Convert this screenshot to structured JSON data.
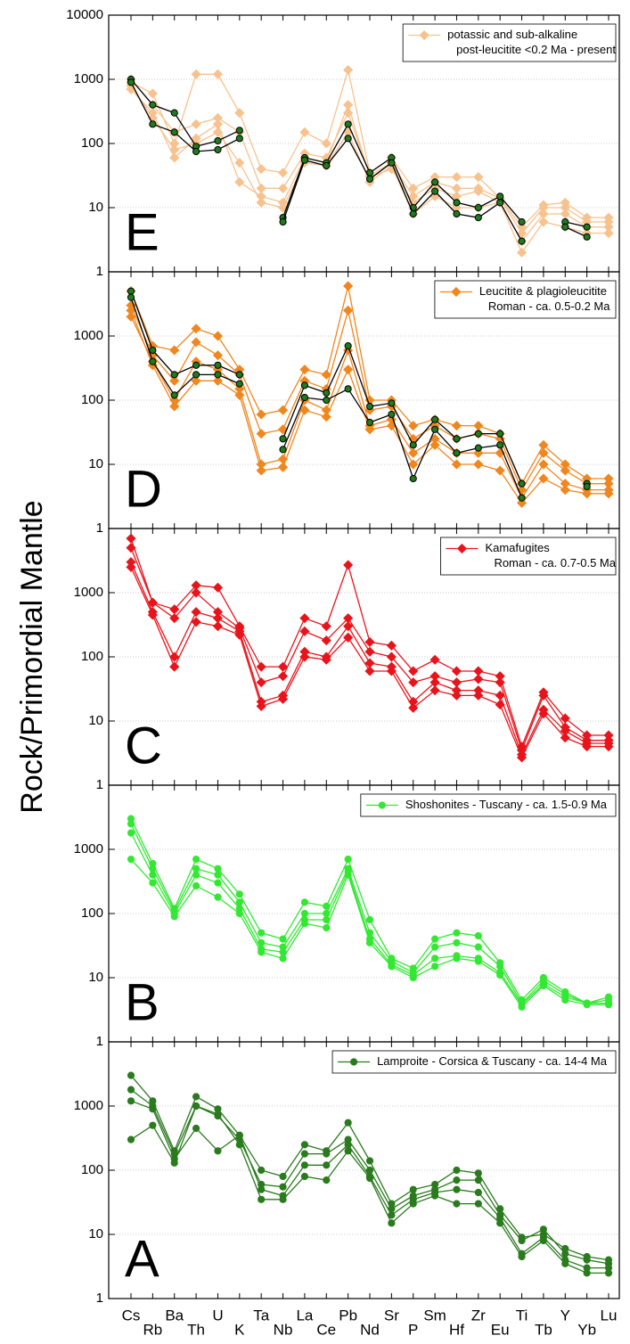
{
  "y_label": "Rock/Primordial Mantle",
  "categories": [
    "Cs",
    "Rb",
    "Ba",
    "Th",
    "U",
    "K",
    "Ta",
    "Nb",
    "La",
    "Ce",
    "Pb",
    "Nd",
    "Sr",
    "P",
    "Sm",
    "Hf",
    "Zr",
    "Eu",
    "Ti",
    "Tb",
    "Y",
    "Yb",
    "Lu"
  ],
  "chart_data": [
    {
      "type": "line",
      "label": "E",
      "log_y": true,
      "ylim": [
        1,
        10000
      ],
      "yticks": [
        1,
        10,
        100,
        1000,
        10000
      ],
      "grid": true,
      "legend": [
        "potassic and sub-alkaline",
        "post-leucitite <0.2 Ma - present"
      ],
      "color": "#f7c28e",
      "marker": "diamond",
      "series": [
        {
          "color": "#f7c28e",
          "values": [
            900,
            600,
            100,
            1200,
            1200,
            300,
            40,
            35,
            150,
            100,
            1400,
            35,
            60,
            20,
            30,
            30,
            30,
            14,
            5,
            11,
            12,
            7,
            7
          ]
        },
        {
          "color": "#f7c28e",
          "values": [
            700,
            300,
            60,
            120,
            200,
            25,
            15,
            12,
            60,
            50,
            400,
            30,
            40,
            12,
            20,
            15,
            18,
            12,
            3,
            8,
            8,
            5,
            5
          ]
        },
        {
          "color": "#f7c28e",
          "values": [
            1000,
            400,
            150,
            200,
            250,
            150,
            20,
            20,
            70,
            60,
            300,
            32,
            50,
            15,
            25,
            20,
            20,
            14,
            4,
            10,
            10,
            6,
            6
          ]
        },
        {
          "color": "#f7c28e",
          "values": [
            800,
            250,
            80,
            100,
            150,
            50,
            12,
            10,
            50,
            45,
            150,
            25,
            45,
            8,
            15,
            10,
            10,
            12,
            2,
            6,
            5,
            4,
            4
          ]
        },
        {
          "color": "#000000",
          "marker_color": "#1f7a1f",
          "marker": "circle",
          "values": [
            1000,
            400,
            300,
            90,
            110,
            160,
            null,
            7,
            60,
            50,
            200,
            35,
            60,
            10,
            25,
            12,
            10,
            15,
            6,
            null,
            6,
            5,
            null
          ]
        },
        {
          "color": "#000000",
          "marker_color": "#1f7a1f",
          "marker": "circle",
          "values": [
            900,
            200,
            150,
            75,
            80,
            120,
            null,
            6,
            55,
            45,
            120,
            28,
            50,
            8,
            18,
            8,
            7,
            12,
            3,
            null,
            5,
            3.5,
            null
          ]
        }
      ]
    },
    {
      "type": "line",
      "label": "D",
      "log_y": true,
      "ylim": [
        1,
        10000
      ],
      "yticks": [
        1,
        10,
        100,
        1000
      ],
      "grid": true,
      "legend": [
        "Leucitite & plagioleucitite",
        "Roman - ca. 0.5-0.2 Ma"
      ],
      "color": "#f0861e",
      "marker": "diamond",
      "series": [
        {
          "color": "#f0861e",
          "values": [
            5000,
            700,
            600,
            1300,
            1000,
            300,
            60,
            70,
            300,
            250,
            6000,
            100,
            100,
            40,
            50,
            40,
            40,
            30,
            5,
            20,
            10,
            6,
            6
          ]
        },
        {
          "color": "#f0861e",
          "values": [
            3000,
            500,
            200,
            800,
            500,
            250,
            30,
            35,
            200,
            150,
            2500,
            70,
            80,
            25,
            40,
            25,
            30,
            25,
            4,
            15,
            8,
            5,
            5
          ]
        },
        {
          "color": "#f0861e",
          "values": [
            2000,
            400,
            100,
            400,
            300,
            150,
            10,
            12,
            100,
            70,
            600,
            40,
            50,
            15,
            25,
            15,
            15,
            15,
            3,
            10,
            5,
            4,
            4
          ]
        },
        {
          "color": "#f0861e",
          "values": [
            2500,
            350,
            80,
            200,
            200,
            120,
            8,
            9,
            70,
            55,
            300,
            35,
            40,
            10,
            20,
            10,
            10,
            8,
            2.5,
            6,
            4,
            3.5,
            3.5
          ]
        },
        {
          "color": "#000000",
          "marker_color": "#1f7a1f",
          "marker": "circle",
          "values": [
            5000,
            600,
            250,
            350,
            350,
            250,
            null,
            25,
            170,
            130,
            700,
            80,
            90,
            20,
            50,
            25,
            30,
            30,
            5,
            null,
            null,
            5,
            null
          ]
        },
        {
          "color": "#000000",
          "marker_color": "#1f7a1f",
          "marker": "circle",
          "values": [
            4000,
            400,
            120,
            250,
            250,
            180,
            null,
            17,
            110,
            100,
            150,
            45,
            60,
            6,
            35,
            15,
            18,
            20,
            3,
            null,
            null,
            4.5,
            null
          ]
        }
      ]
    },
    {
      "type": "line",
      "label": "C",
      "log_y": true,
      "ylim": [
        1,
        10000
      ],
      "yticks": [
        1,
        10,
        100,
        1000
      ],
      "grid": true,
      "legend": [
        "Kamafugites",
        "Roman - ca. 0.7-0.5 Ma"
      ],
      "color": "#e8141c",
      "marker": "diamond",
      "series": [
        {
          "color": "#e8141c",
          "values": [
            7000,
            700,
            550,
            1300,
            1200,
            300,
            70,
            70,
            400,
            300,
            2700,
            170,
            150,
            60,
            90,
            60,
            60,
            50,
            4,
            28,
            11,
            6,
            6
          ]
        },
        {
          "color": "#e8141c",
          "values": [
            5000,
            700,
            400,
            1000,
            500,
            280,
            40,
            50,
            250,
            180,
            400,
            120,
            100,
            40,
            50,
            40,
            45,
            40,
            3.5,
            25,
            8,
            5,
            5
          ]
        },
        {
          "color": "#e8141c",
          "values": [
            3000,
            500,
            100,
            500,
            400,
            250,
            20,
            25,
            120,
            100,
            300,
            80,
            70,
            20,
            40,
            30,
            30,
            25,
            3,
            15,
            7,
            4.5,
            4.5
          ]
        },
        {
          "color": "#e8141c",
          "values": [
            2500,
            450,
            70,
            350,
            300,
            220,
            17,
            22,
            100,
            90,
            200,
            60,
            60,
            16,
            30,
            25,
            25,
            18,
            2.7,
            13,
            5.5,
            4,
            4
          ]
        }
      ]
    },
    {
      "type": "line",
      "label": "B",
      "log_y": true,
      "ylim": [
        1,
        10000
      ],
      "yticks": [
        1,
        10,
        100,
        1000
      ],
      "grid": true,
      "legend": [
        "Shoshonites - Tuscany - ca. 1.5-0.9 Ma"
      ],
      "color": "#33e833",
      "marker": "circle",
      "series": [
        {
          "color": "#33e833",
          "values": [
            3000,
            600,
            120,
            700,
            500,
            200,
            50,
            40,
            150,
            130,
            700,
            80,
            20,
            14,
            40,
            50,
            45,
            17,
            4.5,
            10,
            6,
            4,
            5
          ]
        },
        {
          "color": "#33e833",
          "values": [
            2500,
            500,
            110,
            500,
            400,
            150,
            35,
            30,
            100,
            100,
            500,
            50,
            18,
            12,
            30,
            35,
            30,
            15,
            4,
            9,
            5.5,
            4,
            4.5
          ]
        },
        {
          "color": "#33e833",
          "values": [
            1800,
            400,
            100,
            400,
            300,
            120,
            28,
            25,
            80,
            80,
            450,
            40,
            16,
            11,
            20,
            22,
            20,
            12,
            3.8,
            8,
            5,
            4,
            4
          ]
        },
        {
          "color": "#33e833",
          "values": [
            700,
            300,
            90,
            270,
            180,
            100,
            25,
            20,
            70,
            60,
            400,
            35,
            15,
            10,
            15,
            20,
            18,
            11,
            3.5,
            7.5,
            4.5,
            3.8,
            3.8
          ]
        }
      ]
    },
    {
      "type": "line",
      "label": "A",
      "log_y": true,
      "ylim": [
        1,
        10000
      ],
      "yticks": [
        1,
        10,
        100,
        1000
      ],
      "grid": true,
      "legend": [
        "Lamproite - Corsica & Tuscany - ca. 14-4 Ma"
      ],
      "color": "#2a7a1e",
      "marker": "circle",
      "series": [
        {
          "color": "#2a7a1e",
          "values": [
            3000,
            1200,
            200,
            1400,
            900,
            350,
            100,
            80,
            250,
            200,
            550,
            140,
            30,
            50,
            60,
            100,
            90,
            25,
            9,
            10,
            6,
            4.5,
            4
          ]
        },
        {
          "color": "#2a7a1e",
          "values": [
            1800,
            1000,
            180,
            1000,
            700,
            300,
            60,
            55,
            180,
            180,
            300,
            100,
            25,
            40,
            50,
            70,
            70,
            20,
            8,
            12,
            5,
            4,
            3.5
          ]
        },
        {
          "color": "#2a7a1e",
          "values": [
            1200,
            900,
            150,
            450,
            200,
            350,
            50,
            40,
            120,
            120,
            250,
            80,
            20,
            35,
            45,
            50,
            45,
            18,
            5,
            9,
            4,
            3,
            3
          ]
        },
        {
          "color": "#2a7a1e",
          "values": [
            300,
            500,
            130,
            1000,
            750,
            250,
            35,
            35,
            80,
            70,
            200,
            75,
            15,
            30,
            40,
            30,
            30,
            15,
            4.5,
            8,
            3.5,
            2.5,
            2.5
          ]
        }
      ]
    }
  ]
}
